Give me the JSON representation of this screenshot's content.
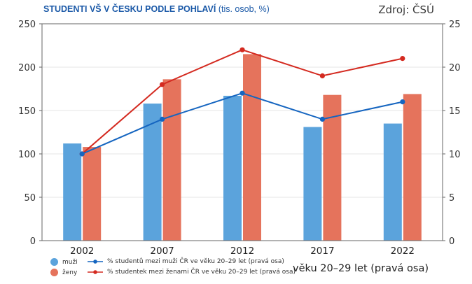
{
  "title": {
    "main": "STUDENTI VŠ V ČESKU PODLE POHLAVÍ",
    "sub": "(tis. osob, %)"
  },
  "source": "Zdroj: ČSÚ",
  "colors": {
    "muzi_bar": "#5ba3dc",
    "zeny_bar": "#e5735c",
    "muzi_line": "#1565c0",
    "zeny_line": "#d42a20",
    "grid": "#e6e6e6",
    "frame": "#666666"
  },
  "legend": {
    "muzi": "muži",
    "zeny": "ženy",
    "muzi_line": "% studentů mezi muži ČR ve věku 20–29 let (pravá osa)",
    "zeny_line": "% studentek mezi ženami ČR ve věku 20–29 let (pravá osa)"
  },
  "axis_note": "věku 20–29 let (pravá osa)",
  "chart_data": {
    "type": "bar+line",
    "title": "STUDENTI VŠ V ČESKU PODLE POHLAVÍ (tis. osob, %)",
    "categories": [
      "2002",
      "2007",
      "2012",
      "2017",
      "2022"
    ],
    "left_axis": {
      "label": "tis. osob",
      "ylim": [
        0,
        250
      ],
      "ticks": [
        0,
        50,
        100,
        150,
        200,
        250
      ]
    },
    "right_axis": {
      "label": "%",
      "ylim": [
        0,
        25
      ],
      "ticks": [
        0,
        5,
        10,
        15,
        20,
        25
      ]
    },
    "series": [
      {
        "name": "muži",
        "type": "bar",
        "axis": "left",
        "values": [
          112,
          158,
          167,
          131,
          135
        ]
      },
      {
        "name": "ženy",
        "type": "bar",
        "axis": "left",
        "values": [
          108,
          186,
          215,
          168,
          169
        ]
      },
      {
        "name": "% studentů mezi muži ČR ve věku 20–29 let (pravá osa)",
        "type": "line",
        "axis": "right",
        "values": [
          10,
          14,
          17,
          14,
          16
        ]
      },
      {
        "name": "% studentek mezi ženami ČR ve věku 20–29 let (pravá osa)",
        "type": "line",
        "axis": "right",
        "values": [
          10,
          18,
          22,
          19,
          21
        ]
      }
    ],
    "grid": true
  }
}
